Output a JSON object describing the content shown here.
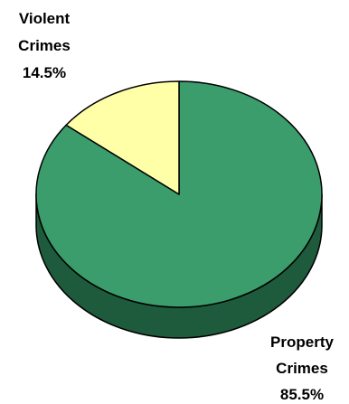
{
  "chart_data": {
    "type": "pie",
    "style": "3d",
    "slices": [
      {
        "label_lines": [
          "Property",
          "Crimes"
        ],
        "value": 85.5,
        "value_label": "85.5%",
        "color": "#3a9d6b",
        "side_color": "#1e5a3c"
      },
      {
        "label_lines": [
          "Violent",
          "Crimes"
        ],
        "value": 14.5,
        "value_label": "14.5%",
        "color": "#ffffa8",
        "side_color": "#b8b878"
      }
    ],
    "outline_color": "#000000"
  }
}
